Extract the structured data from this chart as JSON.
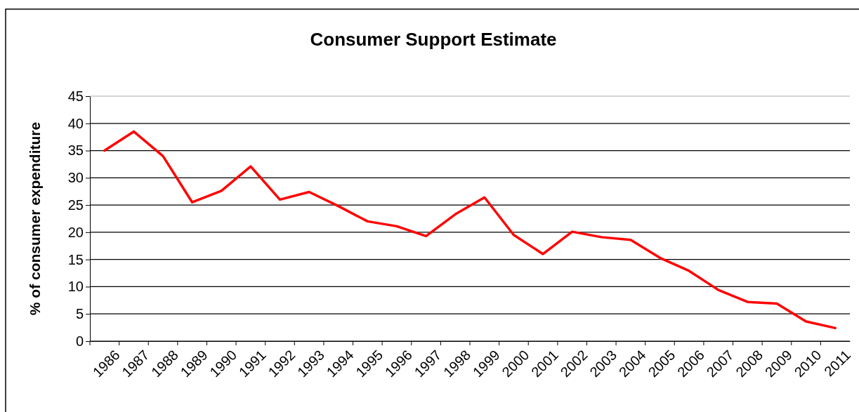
{
  "chart_data": {
    "type": "line",
    "title": "Consumer Support Estimate",
    "ylabel": "% of consumer expenditure",
    "categories": [
      "1986",
      "1987",
      "1988",
      "1989",
      "1990",
      "1991",
      "1992",
      "1993",
      "1994",
      "1995",
      "1996",
      "1997",
      "1998",
      "1999",
      "2000",
      "2001",
      "2002",
      "2003",
      "2004",
      "2005",
      "2006",
      "2007",
      "2008",
      "2009",
      "2010",
      "2011"
    ],
    "series": [
      {
        "color": "#ff0000",
        "values": [
          35,
          38.5,
          34,
          25.5,
          27.6,
          32.1,
          26,
          27.4,
          24.8,
          22,
          21.1,
          19.3,
          23.3,
          26.4,
          19.5,
          16,
          20.1,
          19.1,
          18.6,
          15.3,
          12.9,
          9.4,
          7.2,
          6.9,
          3.6,
          2.4
        ]
      }
    ],
    "ylim": [
      0,
      45
    ],
    "yticks": [
      0,
      5,
      10,
      15,
      20,
      25,
      30,
      35,
      40,
      45
    ],
    "grid": "y",
    "marker": "none",
    "line_style": "solid"
  }
}
